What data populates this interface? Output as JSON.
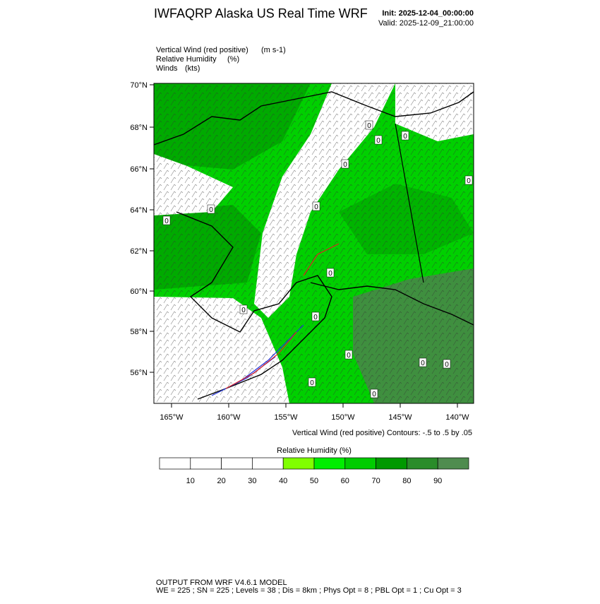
{
  "header": {
    "title": "IWFAQRP Alaska US Real Time WRF",
    "init": "Init: 2025-12-04_00:00:00",
    "valid": "Valid: 2025-12-09_21:00:00"
  },
  "fields": [
    {
      "name": "Vertical Wind (red positive)",
      "units": "(m s-1)"
    },
    {
      "name": "Relative Humidity",
      "units": "(%)"
    },
    {
      "name": "Winds",
      "units": "(kts)"
    }
  ],
  "map": {
    "lat_labels": [
      "70°N",
      "68°N",
      "66°N",
      "64°N",
      "62°N",
      "60°N",
      "58°N",
      "56°N"
    ],
    "lon_labels": [
      "165°W",
      "160°W",
      "155°W",
      "150°W",
      "145°W",
      "140°W"
    ],
    "contour_label": "0",
    "contour_note": "Vertical Wind (red positive) Contours: -.5 to .5 by .05"
  },
  "colorbar": {
    "title": "Relative Humidity  (%)",
    "colors": [
      "#ffffff",
      "#ffffff",
      "#ffffff",
      "#ffffff",
      "#80ff00",
      "#00ee00",
      "#00cc00",
      "#009900",
      "#2a8c2a",
      "#4f8c4f"
    ],
    "labels": [
      "10",
      "20",
      "30",
      "40",
      "50",
      "60",
      "70",
      "80",
      "90"
    ]
  },
  "footer": {
    "line1": "OUTPUT FROM WRF V4.6.1 MODEL",
    "line2": "WE = 225 ; SN = 225 ; Levels = 38 ; Dis = 8km ; Phys Opt = 8 ; PBL Opt = 1 ; Cu Opt = 3"
  }
}
